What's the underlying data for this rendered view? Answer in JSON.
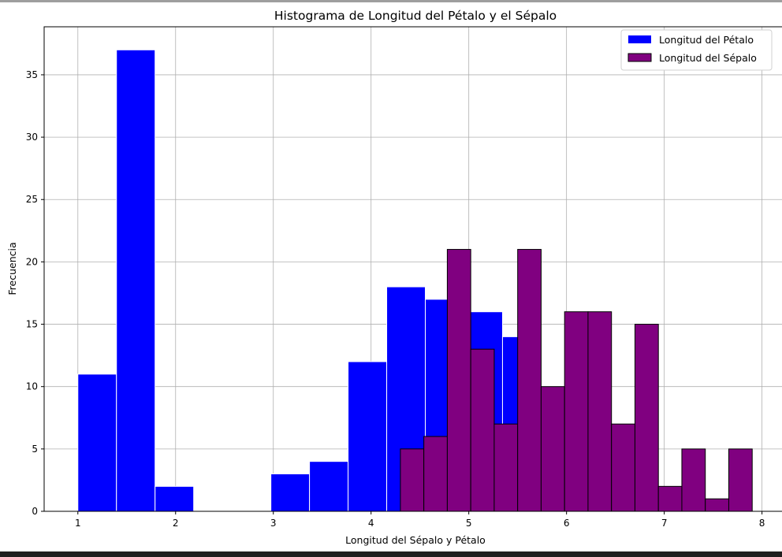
{
  "chart_data": {
    "type": "bar",
    "title": "Histograma de Longitud del Pétalo y el Sépalo",
    "xlabel": "Longitud del Sépalo y Pétalo",
    "ylabel": "Frecuencia",
    "xlim": [
      0.655,
      8.245
    ],
    "ylim": [
      0,
      38.85
    ],
    "xticks": [
      1,
      2,
      3,
      4,
      5,
      6,
      7,
      8
    ],
    "yticks": [
      0,
      5,
      10,
      15,
      20,
      25,
      30,
      35
    ],
    "grid": true,
    "legend_position": "top-right",
    "series": [
      {
        "name": "Longitud del Pétalo",
        "color": "#0000ff",
        "edgecolor": "#ffffff",
        "bin_edges": [
          1.0,
          1.395,
          1.79,
          2.185,
          2.58,
          2.975,
          3.37,
          3.765,
          4.16,
          4.555,
          4.95,
          5.345,
          5.74,
          6.135,
          6.53,
          6.925
        ],
        "values": [
          11,
          37,
          2,
          0,
          0,
          3,
          4,
          12,
          18,
          17,
          16,
          14,
          10,
          6,
          0
        ]
      },
      {
        "name": "Longitud del Sépalo",
        "color": "#800080",
        "edgecolor": "#000000",
        "bin_edges": [
          4.3,
          4.54,
          4.78,
          5.02,
          5.26,
          5.5,
          5.74,
          5.98,
          6.22,
          6.46,
          6.7,
          6.94,
          7.18,
          7.42,
          7.66,
          7.9
        ],
        "values": [
          5,
          6,
          21,
          13,
          7,
          21,
          10,
          16,
          16,
          7,
          15,
          2,
          5,
          1,
          5
        ]
      }
    ]
  }
}
